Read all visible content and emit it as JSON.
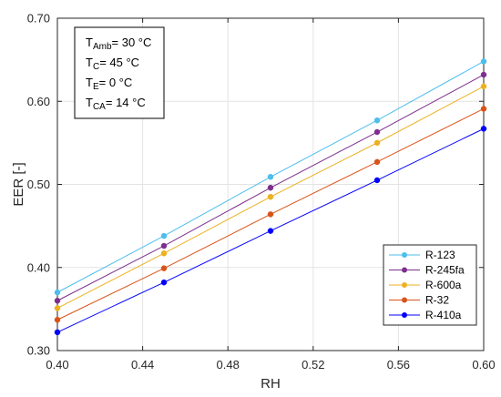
{
  "chart_data": {
    "type": "line",
    "xlabel": "RH",
    "ylabel": "EER [-]",
    "xlim": [
      0.4,
      0.6
    ],
    "ylim": [
      0.3,
      0.7
    ],
    "xticks": [
      0.4,
      0.44,
      0.48,
      0.52,
      0.56,
      0.6
    ],
    "yticks": [
      0.3,
      0.4,
      0.5,
      0.6,
      0.7
    ],
    "xtick_labels": [
      "0.40",
      "0.44",
      "0.48",
      "0.52",
      "0.56",
      "0.60"
    ],
    "ytick_labels": [
      "0.30",
      "0.40",
      "0.50",
      "0.60",
      "0.70"
    ],
    "grid": true,
    "legend_position": "bottom-right",
    "x": [
      0.4,
      0.45,
      0.5,
      0.55,
      0.6
    ],
    "series": [
      {
        "name": "R-123",
        "color": "#4DBEEE",
        "values": [
          0.37,
          0.438,
          0.509,
          0.577,
          0.648
        ]
      },
      {
        "name": "R-245fa",
        "color": "#7E2F8E",
        "values": [
          0.36,
          0.426,
          0.496,
          0.563,
          0.632
        ]
      },
      {
        "name": "R-600a",
        "color": "#EDB120",
        "values": [
          0.351,
          0.417,
          0.485,
          0.55,
          0.618
        ]
      },
      {
        "name": "R-32",
        "color": "#D95319",
        "values": [
          0.337,
          0.399,
          0.464,
          0.527,
          0.591
        ]
      },
      {
        "name": "R-410a",
        "color": "#0000FF",
        "values": [
          0.322,
          0.382,
          0.444,
          0.505,
          0.567
        ]
      }
    ],
    "annotation": [
      {
        "base": "T",
        "sub": "Amb",
        "rest": "= 30 °C"
      },
      {
        "base": "T",
        "sub": "C",
        "rest": "= 45 °C"
      },
      {
        "base": "T",
        "sub": "E",
        "rest": "= 0 °C"
      },
      {
        "base": "T",
        "sub": "CA",
        "rest": "= 14 °C"
      }
    ]
  }
}
